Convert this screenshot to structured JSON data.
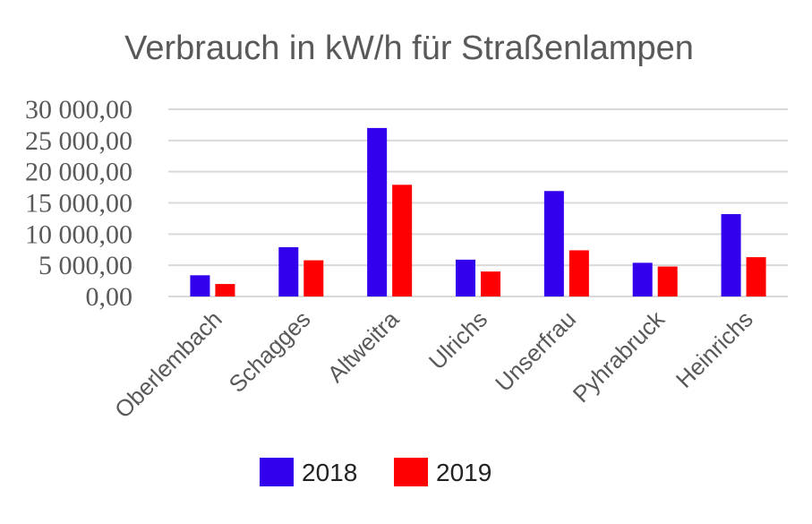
{
  "chart_data": {
    "type": "bar",
    "title": "Verbrauch in kW/h für Straßenlampen",
    "xlabel": "",
    "ylabel": "",
    "categories": [
      "Oberlembach",
      "Schagges",
      "Altweitra",
      "Ulrichs",
      "Unserfrau",
      "Pyhrabruck",
      "Heinrichs"
    ],
    "series": [
      {
        "name": "2018",
        "color": "#3300ee",
        "values": [
          3400,
          7900,
          27000,
          5900,
          16900,
          5400,
          13200
        ]
      },
      {
        "name": "2019",
        "color": "#ff0000",
        "values": [
          2000,
          5800,
          17900,
          4000,
          7400,
          4800,
          6300
        ]
      }
    ],
    "ylim": [
      0,
      30000
    ],
    "yticks": [
      "0,00",
      "5 000,00",
      "10 000,00",
      "15 000,00",
      "20 000,00",
      "25 000,00",
      "30 000,00"
    ],
    "grid": true,
    "legend_position": "bottom"
  }
}
